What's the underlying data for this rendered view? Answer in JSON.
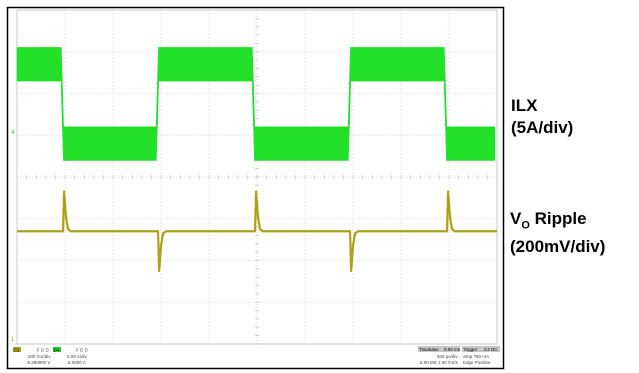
{
  "chart_data": {
    "type": "line",
    "grid": true,
    "axes": {
      "x_divisions": 10,
      "y_divisions": 8
    },
    "annotations": [
      {
        "id": "ilx",
        "lines": [
          "ILX",
          "(5A/div)"
        ]
      },
      {
        "id": "vo",
        "main": "V",
        "sub": "O",
        "rest": " Ripple",
        "line2": "(200mV/div)"
      }
    ],
    "series": [
      {
        "channel": "C4",
        "color": "#22e02a",
        "unit": "div",
        "x": [
          0,
          0.92,
          0.97,
          2.9,
          2.95,
          4.9,
          4.95,
          6.9,
          6.95,
          8.9,
          8.95,
          9.95
        ],
        "y_high": [
          3.1,
          3.1,
          1.2,
          1.2,
          3.1,
          3.1,
          1.2,
          1.2,
          3.1,
          3.1,
          1.2,
          1.2
        ],
        "y_low": [
          2.3,
          2.3,
          0.4,
          0.4,
          2.3,
          2.3,
          0.4,
          0.4,
          2.3,
          2.3,
          0.4,
          0.4
        ]
      },
      {
        "channel": "C1",
        "color": "#a9a21a",
        "unit": "div",
        "baseline": -1.3,
        "positive_spikes_x": [
          0.98,
          4.98,
          8.98
        ],
        "negative_spikes_x": [
          2.96,
          6.96
        ],
        "spike_height": 0.95
      }
    ]
  },
  "status_bar": {
    "channel1": {
      "tag": "C1",
      "title": "F D D",
      "line1": "200 mV/div",
      "line2": "-5.280000 V"
    },
    "channel4": {
      "tag": "C4",
      "title": "F D D",
      "line1": "5.00 A/div",
      "line2": "5.0000 A"
    },
    "timebase": {
      "label": "Timebase",
      "value": "0.00 ms",
      "sub1": "500 µs/div",
      "sub2": "5.00 MS  2.50 GS/s"
    },
    "trigger": {
      "label": "Trigger",
      "value": "C4 DC",
      "sub1": "Stop  750 mA",
      "sub2": "Edge  Positive"
    }
  }
}
